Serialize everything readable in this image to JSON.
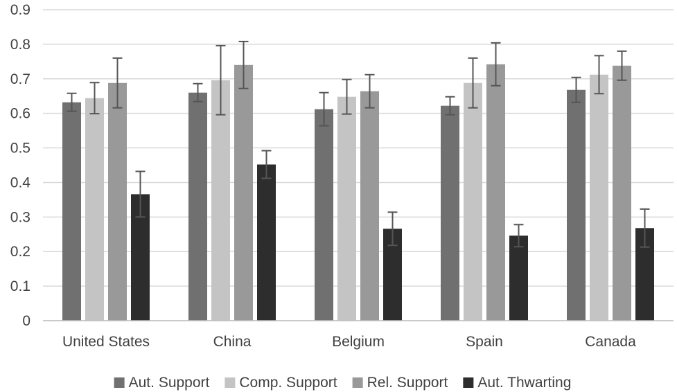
{
  "chart_data": {
    "type": "bar",
    "title": "",
    "xlabel": "",
    "ylabel": "",
    "categories": [
      "United States",
      "China",
      "Belgium",
      "Spain",
      "Canada"
    ],
    "ylim": [
      0,
      0.9
    ],
    "yticks": [
      0,
      0.1,
      0.2,
      0.3,
      0.4,
      0.5,
      0.6,
      0.7,
      0.8,
      0.9
    ],
    "ytick_labels": [
      "0",
      "0.1",
      "0.2",
      "0.3",
      "0.4",
      "0.5",
      "0.6",
      "0.7",
      "0.8",
      "0.9"
    ],
    "grid": "horizontal",
    "legend_position": "bottom",
    "series": [
      {
        "name": "Aut. Support",
        "color": "#707070",
        "values": [
          0.632,
          0.66,
          0.612,
          0.622,
          0.668
        ],
        "error": [
          0.026,
          0.026,
          0.048,
          0.026,
          0.036
        ]
      },
      {
        "name": "Comp. Support",
        "color": "#c4c4c4",
        "values": [
          0.644,
          0.696,
          0.648,
          0.688,
          0.712
        ],
        "error": [
          0.045,
          0.1,
          0.05,
          0.072,
          0.055
        ]
      },
      {
        "name": "Rel. Support",
        "color": "#999999",
        "values": [
          0.688,
          0.74,
          0.664,
          0.742,
          0.738
        ],
        "error": [
          0.072,
          0.068,
          0.048,
          0.062,
          0.042
        ]
      },
      {
        "name": "Aut. Thwarting",
        "color": "#2d2d2d",
        "values": [
          0.366,
          0.452,
          0.266,
          0.246,
          0.268
        ],
        "error": [
          0.066,
          0.04,
          0.048,
          0.032,
          0.055
        ]
      }
    ]
  }
}
